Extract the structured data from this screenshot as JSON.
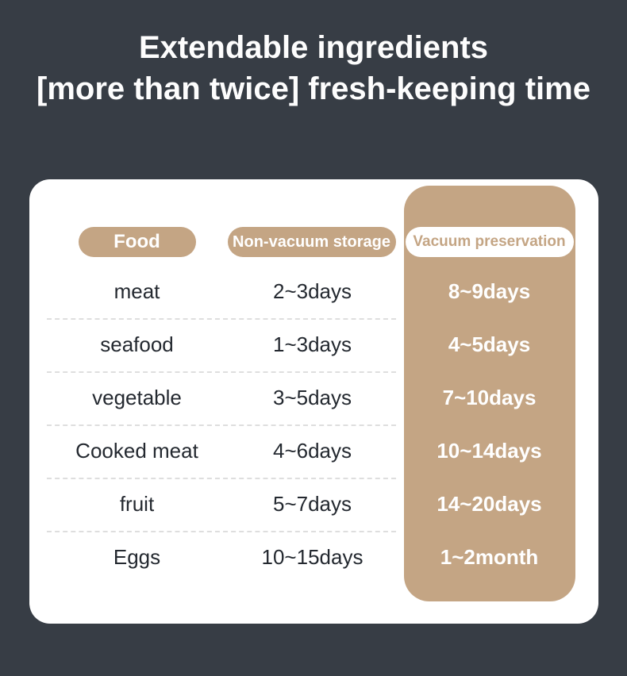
{
  "title": {
    "line1": "Extendable ingredients",
    "line2": "[more than twice] fresh-keeping time"
  },
  "chart_data": {
    "type": "table",
    "title": "Extendable ingredients [more than twice] fresh-keeping time",
    "columns": [
      "Food",
      "Non-vacuum storage",
      "Vacuum preservation"
    ],
    "rows": [
      [
        "meat",
        "2~3days",
        "8~9days"
      ],
      [
        "seafood",
        "1~3days",
        "4~5days"
      ],
      [
        "vegetable",
        "3~5days",
        "7~10days"
      ],
      [
        "Cooked meat",
        "4~6days",
        "10~14days"
      ],
      [
        "fruit",
        "5~7days",
        "14~20days"
      ],
      [
        "Eggs",
        "10~15days",
        "1~2month"
      ]
    ],
    "layout": {
      "highlight_column": "Vacuum preservation",
      "highlight_color": "#c4a584",
      "card_color": "#ffffff",
      "background_color": "#373d45"
    }
  },
  "colors": {
    "background": "#373d45",
    "accent_tan": "#c4a584",
    "card": "#ffffff",
    "row_text": "#242930",
    "divider": "#dedede"
  }
}
